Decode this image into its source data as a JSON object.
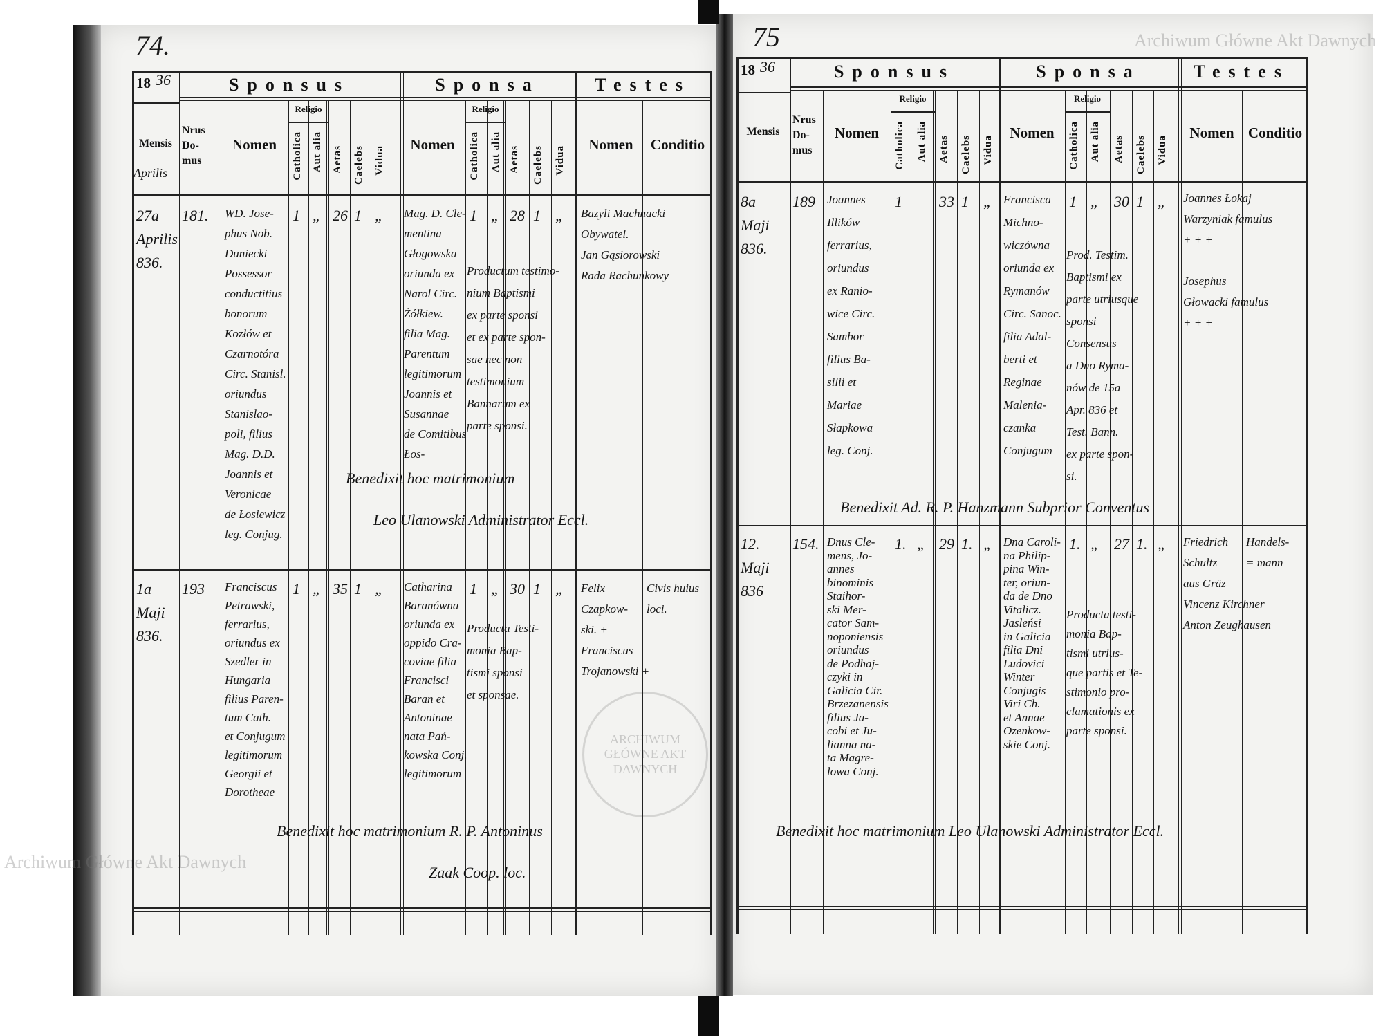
{
  "watermarks": {
    "top_right": "Archiwum Główne Akt Dawnych",
    "bottom_left": "Archiwum Główne Akt Dawnych",
    "seal": "ARCHIWUM GŁÓWNE AKT DAWNYCH"
  },
  "headers": {
    "year_printed": "18",
    "sponsus": "Sponsus",
    "sponsa": "Sponsa",
    "testes": "Testes",
    "mensis": "Mensis",
    "nrus_domus": [
      "Nrus",
      "Do-",
      "mus"
    ],
    "nomen": "Nomen",
    "religio": "Religio",
    "catholica": "Catholica",
    "aut_alia": "Aut alia",
    "aetas": "Aetas",
    "caelebs": "Caelebs",
    "vidua": "Vidua",
    "conditio": "Conditio"
  },
  "pages": [
    {
      "page_number": "74.",
      "year_hand": "36",
      "month_header": "Aprilis",
      "entries": [
        {
          "mensis": [
            "27a",
            "Aprilis",
            "836."
          ],
          "nrus": "181.",
          "sponsus": {
            "nomen": [
              "WD. Jose-",
              "phus Nob.",
              "Duniecki",
              "Possessor",
              "conductitius",
              "bonorum",
              "Kozłów et",
              "Czarnotóra",
              "Circ. Stanisl.",
              "oriundus",
              "Stanislao-",
              "poli, filius",
              "Mag. D.D.",
              "Joannis et",
              "Veronicae",
              "de Łosiewicz",
              "leg. Conjug."
            ],
            "catholica": "1",
            "aut_alia": "„",
            "aetas": "26",
            "caelebs": "1",
            "vidua": "„"
          },
          "sponsa": {
            "nomen": [
              "Mag. D. Cle-",
              "mentina",
              "Głogowska",
              "oriunda ex",
              "Narol Circ.",
              "Żółkiew.",
              "filia Mag.",
              "Parentum",
              "legitimorum",
              "Joannis et",
              "Susannae",
              "de Comitibus",
              "Łos-"
            ],
            "catholica": "1",
            "aut_alia": "„",
            "aetas": "28",
            "caelebs": "1",
            "vidua": "„"
          },
          "note": [
            "Productum testimo-",
            "nium Baptismi",
            "ex parte sponsi",
            "et ex parte spon-",
            "sae nec non",
            "testimonium",
            "Bannarum ex",
            "parte sponsi."
          ],
          "testes": [
            "Bazyli Machnacki",
            "Obywatel.",
            "Jan Gąsiorowski",
            "Rada Rachunkowy"
          ],
          "conditio": [],
          "benedixit": [
            "Benedixit hoc matrimonium",
            "Leo Ulanowski Administrator Eccl."
          ]
        },
        {
          "mensis": [
            "1a",
            "Maji",
            "836."
          ],
          "nrus": "193",
          "sponsus": {
            "nomen": [
              "Franciscus",
              "Petrawski,",
              "ferrarius,",
              "oriundus ex",
              "Szedler in",
              "Hungaria",
              "filius Paren-",
              "tum Cath.",
              "et Conjugum",
              "legitimorum",
              "Georgii et",
              "Dorotheae"
            ],
            "catholica": "1",
            "aut_alia": "„",
            "aetas": "35",
            "caelebs": "1",
            "vidua": "„"
          },
          "sponsa": {
            "nomen": [
              "Catharina",
              "Baranówna",
              "oriunda ex",
              "oppido Cra-",
              "coviae filia",
              "Francisci",
              "Baran et",
              "Antoninae",
              "nata Pań-",
              "kowska Conj.",
              "legitimorum"
            ],
            "catholica": "1",
            "aut_alia": "„",
            "aetas": "30",
            "caelebs": "1",
            "vidua": "„"
          },
          "note": [
            "Producta Testi-",
            "monia Bap-",
            "tismi sponsi",
            "et sponsae."
          ],
          "testes": [
            "Felix",
            "Czapkow-",
            "ski. +",
            "Franciscus",
            "Trojanowski +"
          ],
          "conditio": [
            "Civis huius",
            "loci."
          ],
          "benedixit": [
            "Benedixit hoc matrimonium R. P. Antoninus",
            "Zaak Coop. loc."
          ]
        }
      ]
    },
    {
      "page_number": "75",
      "year_hand": "36",
      "entries": [
        {
          "mensis": [
            "8a",
            "Maji",
            "836."
          ],
          "nrus": "189",
          "sponsus": {
            "nomen": [
              "Joannes",
              "Illików",
              "ferrarius,",
              "oriundus",
              "ex Ranio-",
              "wice Circ.",
              "Sambor",
              "filius Ba-",
              "silii et",
              "Mariae",
              "Słapkowa",
              "leg. Conj."
            ],
            "catholica": "1",
            "aut_alia": "",
            "aetas": "33",
            "caelebs": "1",
            "vidua": "„"
          },
          "sponsa": {
            "nomen": [
              "Francisca",
              "Michno-",
              "wiczówna",
              "oriunda ex",
              "Rymanów",
              "Circ. Sanoc.",
              "filia Adal-",
              "berti et",
              "Reginae",
              "Malenia-",
              "czanka",
              "Conjugum"
            ],
            "catholica": "1",
            "aut_alia": "„",
            "aetas": "30",
            "caelebs": "1",
            "vidua": "„"
          },
          "note": [
            "Prod. Testim.",
            "Baptismi ex",
            "parte utriusque",
            "sponsi",
            "Consensus",
            "a Dno Ryma-",
            "nów de 15a",
            "Apr. 836 et",
            "Test. Bann.",
            "ex parte spon-",
            "si."
          ],
          "testes": [
            "Joannes Łokaj",
            "Warzyniak famulus",
            "+ + +",
            "",
            "Josephus",
            "Głowacki famulus",
            "+ + +"
          ],
          "conditio": [],
          "benedixit": [
            "Benedixit Ad. R. P. Hanzmann Subprior Conventus"
          ]
        },
        {
          "mensis": [
            "12.",
            "Maji",
            "836"
          ],
          "nrus": "154.",
          "sponsus": {
            "nomen": [
              "Dnus Cle-",
              "mens, Jo-",
              "annes",
              "binominis",
              "Staihor-",
              "ski Mer-",
              "cator Sam-",
              "noponiensis",
              "oriundus",
              "de Podhaj-",
              "czyki in",
              "Galicia Cir.",
              "Brzezanensis",
              "filius Ja-",
              "cobi et Ju-",
              "lianna na-",
              "ta Magre-",
              "lowa Conj."
            ],
            "catholica": "1.",
            "aut_alia": "„",
            "aetas": "29",
            "caelebs": "1.",
            "vidua": "„"
          },
          "sponsa": {
            "nomen": [
              "Dna Caroli-",
              "na Philip-",
              "pina Win-",
              "ter, oriun-",
              "da de Dno",
              "Vitalicz.",
              "Jasleńsi",
              "in Galicia",
              "filia Dni",
              "Ludovici",
              "Winter",
              "Conjugis",
              "Viri Ch.",
              "et Annae",
              "Ozenkow-",
              "skie Conj."
            ],
            "catholica": "1.",
            "aut_alia": "„",
            "aetas": "27",
            "caelebs": "1.",
            "vidua": "„"
          },
          "note": [
            "Producta testi-",
            "monia Bap-",
            "tismi utrius-",
            "que partis et Te-",
            "stimonio pro-",
            "clamationis ex",
            "parte sponsi."
          ],
          "testes": [
            "Friedrich",
            "Schultz",
            "aus Gräz",
            "Vincenz Kirchner",
            "Anton Zeughausen"
          ],
          "conditio": [
            "Handels-",
            "= mann"
          ],
          "benedixit": [
            "Benedixit hoc matrimonium Leo Ulanowski Administrator Eccl."
          ]
        }
      ]
    }
  ]
}
